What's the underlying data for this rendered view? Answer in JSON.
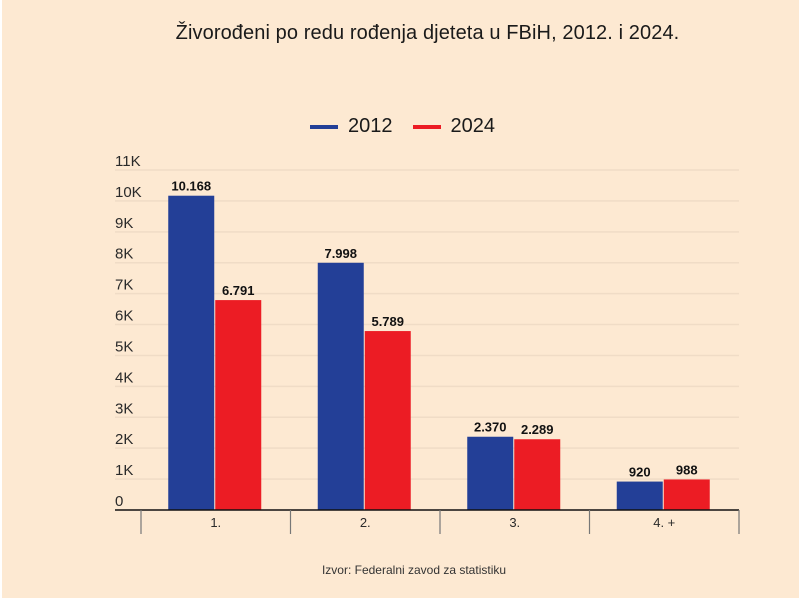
{
  "chart_data": {
    "type": "bar",
    "title": "Živorođeni po redu rođenja djeteta u FBiH, 2012. i 2024.",
    "xlabel": "",
    "ylabel": "",
    "categories": [
      "1.",
      "2.",
      "3.",
      "4. +"
    ],
    "series": [
      {
        "name": "2012",
        "color": "#233f97",
        "values": [
          10168,
          7998,
          2370,
          920
        ],
        "labels": [
          "10.168",
          "7.998",
          "2.370",
          "920"
        ]
      },
      {
        "name": "2024",
        "color": "#ec1c24",
        "values": [
          6791,
          5789,
          2289,
          988
        ],
        "labels": [
          "6.791",
          "5.789",
          "2.289",
          "988"
        ]
      }
    ],
    "ylim": [
      0,
      11000
    ],
    "yticks": [
      0,
      1000,
      2000,
      3000,
      4000,
      5000,
      6000,
      7000,
      8000,
      9000,
      10000,
      11000
    ],
    "ytick_labels": [
      "0",
      "1K",
      "2K",
      "3K",
      "4K",
      "5K",
      "6K",
      "7K",
      "8K",
      "9K",
      "10K",
      "11K"
    ],
    "grid": true,
    "legend_position": "top-center",
    "source": "Izvor: Federalni zavod za statistiku"
  }
}
